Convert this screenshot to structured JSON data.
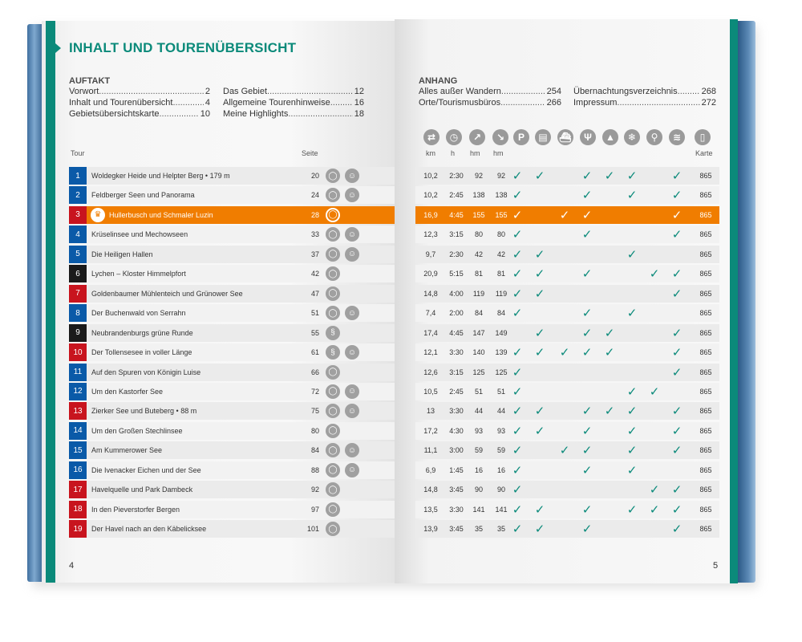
{
  "title": "INHALT UND TOURENÜBERSICHT",
  "auftakt": {
    "heading": "AUFTAKT",
    "col1": [
      {
        "label": "Vorwort",
        "page": "2"
      },
      {
        "label": "Inhalt und Tourenübersicht",
        "page": "4"
      },
      {
        "label": "Gebietsübersichtskarte",
        "page": "10"
      }
    ],
    "col2": [
      {
        "label": "Das Gebiet",
        "page": "12"
      },
      {
        "label": "Allgemeine Tourenhinweise",
        "page": "16"
      },
      {
        "label": "Meine Highlights",
        "page": "18"
      }
    ]
  },
  "anhang": {
    "heading": "ANHANG",
    "col1": [
      {
        "label": "Alles außer Wandern",
        "page": "254"
      },
      {
        "label": "Orte/Tourismusbüros",
        "page": "266"
      }
    ],
    "col2": [
      {
        "label": "Übernachtungsverzeichnis",
        "page": "268"
      },
      {
        "label": "Impressum",
        "page": "272"
      }
    ]
  },
  "columns": {
    "tour": "Tour",
    "seite": "Seite",
    "km": "km",
    "h": "h",
    "hm_up": "hm",
    "hm_down": "hm",
    "karte": "Karte"
  },
  "icons": [
    "direction-icon",
    "clock-icon",
    "ascent-icon",
    "descent-icon",
    "parking-icon",
    "bus-icon",
    "boat-icon",
    "restaurant-icon",
    "summit-icon",
    "snowflake-icon",
    "bike-icon",
    "bath-icon",
    "map-icon"
  ],
  "colors": {
    "teal": "#0b8a7a",
    "orange": "#f07d00",
    "blue": "#0a5aa8",
    "red": "#c8141e",
    "black": "#1a1a1a",
    "check": "#0b8a7a"
  },
  "tours": [
    {
      "n": "1",
      "name": "Woldegker Heide und Helpter Berg • 179 m",
      "seite": "20",
      "badges": [
        "circle",
        "kids"
      ],
      "km": "10,2",
      "h": "2:30",
      "up": "92",
      "down": "92",
      "checks": [
        1,
        1,
        0,
        1,
        1,
        1,
        0,
        1
      ],
      "karte": "865",
      "color": "blue"
    },
    {
      "n": "2",
      "name": "Feldberger Seen und Panorama",
      "seite": "24",
      "badges": [
        "circle",
        "kids"
      ],
      "km": "10,2",
      "h": "2:45",
      "up": "138",
      "down": "138",
      "checks": [
        1,
        0,
        0,
        1,
        0,
        1,
        0,
        1
      ],
      "karte": "865",
      "color": "blue"
    },
    {
      "n": "3",
      "name": "Hullerbusch und Schmaler Luzin",
      "seite": "28",
      "badges": [
        "circle-outline"
      ],
      "km": "16,9",
      "h": "4:45",
      "up": "155",
      "down": "155",
      "checks": [
        1,
        0,
        1,
        1,
        0,
        0,
        0,
        1
      ],
      "karte": "865",
      "color": "red",
      "highlight": true
    },
    {
      "n": "4",
      "name": "Krüselinsee und Mechowseen",
      "seite": "33",
      "badges": [
        "circle",
        "kids"
      ],
      "km": "12,3",
      "h": "3:15",
      "up": "80",
      "down": "80",
      "checks": [
        1,
        0,
        0,
        1,
        0,
        0,
        0,
        1
      ],
      "karte": "865",
      "color": "blue"
    },
    {
      "n": "5",
      "name": "Die Heiligen Hallen",
      "seite": "37",
      "badges": [
        "circle",
        "kids"
      ],
      "km": "9,7",
      "h": "2:30",
      "up": "42",
      "down": "42",
      "checks": [
        1,
        1,
        0,
        0,
        0,
        1,
        0,
        0
      ],
      "karte": "865",
      "color": "blue"
    },
    {
      "n": "6",
      "name": "Lychen – Kloster Himmelpfort",
      "seite": "42",
      "badges": [
        "circle"
      ],
      "km": "20,9",
      "h": "5:15",
      "up": "81",
      "down": "81",
      "checks": [
        1,
        1,
        0,
        1,
        0,
        0,
        1,
        1
      ],
      "karte": "865",
      "color": "black"
    },
    {
      "n": "7",
      "name": "Goldenbaumer Mühlenteich und Grünower See",
      "seite": "47",
      "badges": [
        "circle"
      ],
      "km": "14,8",
      "h": "4:00",
      "up": "119",
      "down": "119",
      "checks": [
        1,
        1,
        0,
        0,
        0,
        0,
        0,
        1
      ],
      "karte": "865",
      "color": "red"
    },
    {
      "n": "8",
      "name": "Der Buchenwald von Serrahn",
      "seite": "51",
      "badges": [
        "circle",
        "kids"
      ],
      "km": "7,4",
      "h": "2:00",
      "up": "84",
      "down": "84",
      "checks": [
        1,
        0,
        0,
        1,
        0,
        1,
        0,
        0
      ],
      "karte": "865",
      "color": "blue"
    },
    {
      "n": "9",
      "name": "Neubrandenburgs grüne Runde",
      "seite": "55",
      "badges": [
        "wave"
      ],
      "km": "17,4",
      "h": "4:45",
      "up": "147",
      "down": "149",
      "checks": [
        0,
        1,
        0,
        1,
        1,
        0,
        0,
        1
      ],
      "karte": "865",
      "color": "black"
    },
    {
      "n": "10",
      "name": "Der Tollensesee in voller Länge",
      "seite": "61",
      "badges": [
        "wave",
        "kids"
      ],
      "km": "12,1",
      "h": "3:30",
      "up": "140",
      "down": "139",
      "checks": [
        1,
        1,
        1,
        1,
        1,
        0,
        0,
        1
      ],
      "karte": "865",
      "color": "red"
    },
    {
      "n": "11",
      "name": "Auf den Spuren von Königin Luise",
      "seite": "66",
      "badges": [
        "circle"
      ],
      "km": "12,6",
      "h": "3:15",
      "up": "125",
      "down": "125",
      "checks": [
        1,
        0,
        0,
        0,
        0,
        0,
        0,
        1
      ],
      "karte": "865",
      "color": "blue"
    },
    {
      "n": "12",
      "name": "Um den Kastorfer See",
      "seite": "72",
      "badges": [
        "circle",
        "kids"
      ],
      "km": "10,5",
      "h": "2:45",
      "up": "51",
      "down": "51",
      "checks": [
        1,
        0,
        0,
        0,
        0,
        1,
        1,
        0
      ],
      "karte": "865",
      "color": "blue"
    },
    {
      "n": "13",
      "name": "Zierker See und Buteberg • 88 m",
      "seite": "75",
      "badges": [
        "circle",
        "kids"
      ],
      "km": "13",
      "h": "3:30",
      "up": "44",
      "down": "44",
      "checks": [
        1,
        1,
        0,
        1,
        1,
        1,
        0,
        1
      ],
      "karte": "865",
      "color": "red"
    },
    {
      "n": "14",
      "name": "Um den Großen Stechlinsee",
      "seite": "80",
      "badges": [
        "circle"
      ],
      "km": "17,2",
      "h": "4:30",
      "up": "93",
      "down": "93",
      "checks": [
        1,
        1,
        0,
        1,
        0,
        1,
        0,
        1
      ],
      "karte": "865",
      "color": "blue"
    },
    {
      "n": "15",
      "name": "Am Kummerower See",
      "seite": "84",
      "badges": [
        "circle",
        "kids"
      ],
      "km": "11,1",
      "h": "3:00",
      "up": "59",
      "down": "59",
      "checks": [
        1,
        0,
        1,
        1,
        0,
        1,
        0,
        1
      ],
      "karte": "865",
      "color": "blue"
    },
    {
      "n": "16",
      "name": "Die Ivenacker Eichen und der See",
      "seite": "88",
      "badges": [
        "circle",
        "kids"
      ],
      "km": "6,9",
      "h": "1:45",
      "up": "16",
      "down": "16",
      "checks": [
        1,
        0,
        0,
        1,
        0,
        1,
        0,
        0
      ],
      "karte": "865",
      "color": "blue"
    },
    {
      "n": "17",
      "name": "Havelquelle und Park Dambeck",
      "seite": "92",
      "badges": [
        "circle"
      ],
      "km": "14,8",
      "h": "3:45",
      "up": "90",
      "down": "90",
      "checks": [
        1,
        0,
        0,
        0,
        0,
        0,
        1,
        1
      ],
      "karte": "865",
      "color": "red"
    },
    {
      "n": "18",
      "name": "In den Pieverstorfer Bergen",
      "seite": "97",
      "badges": [
        "circle"
      ],
      "km": "13,5",
      "h": "3:30",
      "up": "141",
      "down": "141",
      "checks": [
        1,
        1,
        0,
        1,
        0,
        1,
        1,
        1
      ],
      "karte": "865",
      "color": "red"
    },
    {
      "n": "19",
      "name": "Der Havel nach an den Käbelicksee",
      "seite": "101",
      "badges": [
        "circle"
      ],
      "km": "13,9",
      "h": "3:45",
      "up": "35",
      "down": "35",
      "checks": [
        1,
        1,
        0,
        1,
        0,
        0,
        0,
        1
      ],
      "karte": "865",
      "color": "red"
    }
  ],
  "page_left": "4",
  "page_right": "5"
}
